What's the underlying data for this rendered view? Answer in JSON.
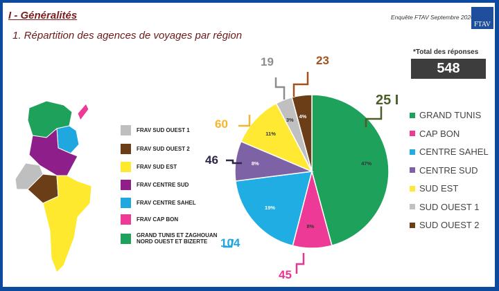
{
  "header": {
    "section": "I - Généralités",
    "subtitle": "1. Répartition des agences de voyages par région",
    "survey": "Enquête FTAV Septembre 2020",
    "logo_text": "FTAV"
  },
  "total": {
    "label": "*Total des réponses",
    "value": "548"
  },
  "map_legend": [
    {
      "label": "FRAV SUD OUEST 1",
      "color": "#bfbfbf"
    },
    {
      "label": "FRAV SUD OUEST 2",
      "color": "#6b3e17"
    },
    {
      "label": "FRAV SUD EST",
      "color": "#ffe92e"
    },
    {
      "label": "FRAV CENTRE SUD",
      "color": "#8e1f8a"
    },
    {
      "label": "FRAV CENTRE SAHEL",
      "color": "#1fa8e0"
    },
    {
      "label": "FRAV CAP BON",
      "color": "#ee3a97"
    },
    {
      "label": "GRAND TUNIS ET ZAGHOUAN NORD OUEST ET BIZERTE",
      "color": "#1ea15a"
    }
  ],
  "chart_data": {
    "type": "pie",
    "title": "Répartition des agences de voyages par région",
    "start": "top",
    "direction": "clockwise",
    "slices": [
      {
        "label": "GRAND TUNIS",
        "value": 251,
        "value_label": "25 I",
        "pct": "47%",
        "color": "#1ea15a",
        "label_color": "#4b5e27"
      },
      {
        "label": "CAP BON",
        "value": 45,
        "value_label": "45",
        "pct": "8%",
        "color": "#ee3a97",
        "label_color": "#e8358f"
      },
      {
        "label": "CENTRE SAHEL",
        "value": 104,
        "value_label": "104",
        "pct": "19%",
        "color": "#1fade3",
        "label_color": "#1fa6de"
      },
      {
        "label": "CENTRE SUD",
        "value": 46,
        "value_label": "46",
        "pct": "8%",
        "color": "#7e62a6",
        "label_color": "#2f2545"
      },
      {
        "label": "SUD EST",
        "value": 60,
        "value_label": "60",
        "pct": "11%",
        "color": "#ffe933",
        "label_color": "#f7b52c"
      },
      {
        "label": "SUD OUEST 1",
        "value": 19,
        "value_label": "19",
        "pct": "3%",
        "color": "#c0c0c0",
        "label_color": "#8d8d8d"
      },
      {
        "label": "SUD OUEST 2",
        "value": 23,
        "value_label": "23",
        "pct": "4%",
        "color": "#6b3e17",
        "label_color": "#a2511c"
      }
    ],
    "legend_position": "right"
  }
}
